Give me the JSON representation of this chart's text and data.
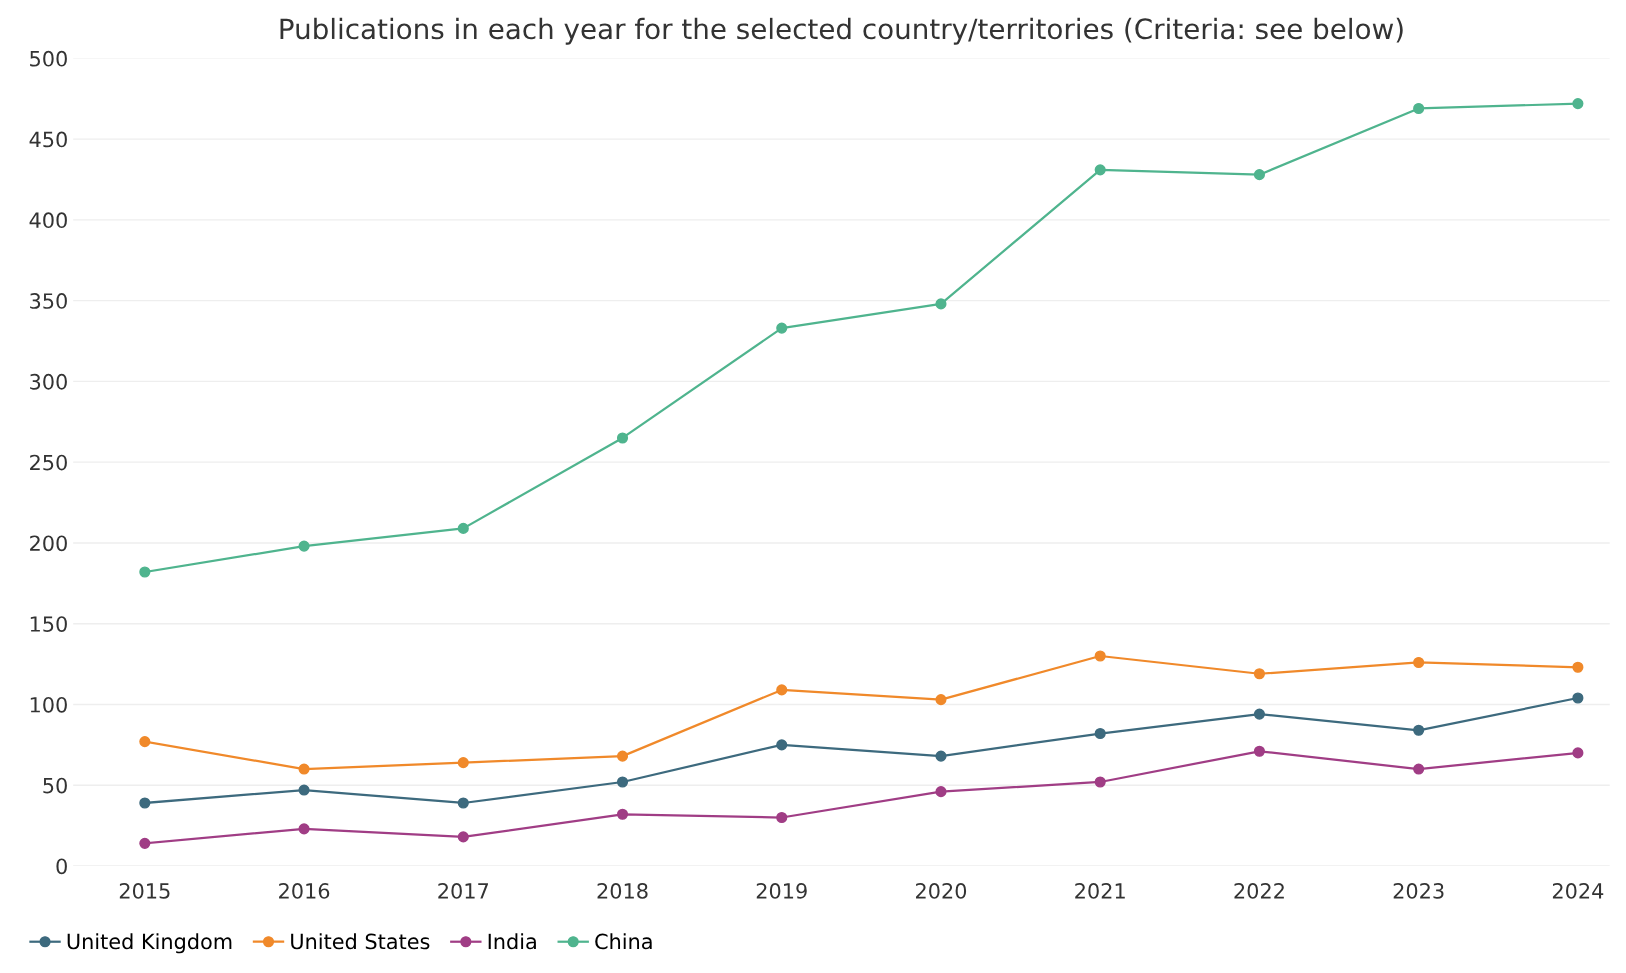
{
  "chart_data": {
    "type": "line",
    "title": "Publications in each year for the selected country/territories (Criteria: see below)",
    "categories": [
      "2015",
      "2016",
      "2017",
      "2018",
      "2019",
      "2020",
      "2021",
      "2022",
      "2023",
      "2024"
    ],
    "series": [
      {
        "name": "United Kingdom",
        "color": "#3d6a7e",
        "values": [
          39,
          47,
          39,
          52,
          75,
          68,
          82,
          94,
          84,
          104
        ]
      },
      {
        "name": "United States",
        "color": "#f0892a",
        "values": [
          77,
          60,
          64,
          68,
          109,
          103,
          130,
          119,
          126,
          123
        ]
      },
      {
        "name": "India",
        "color": "#a03d85",
        "values": [
          14,
          23,
          18,
          32,
          30,
          46,
          52,
          71,
          60,
          70
        ]
      },
      {
        "name": "China",
        "color": "#4fb48e",
        "values": [
          182,
          198,
          209,
          265,
          333,
          348,
          431,
          428,
          469,
          472
        ]
      }
    ],
    "ylim": [
      0,
      500
    ],
    "yticks": [
      0,
      50,
      100,
      150,
      200,
      250,
      300,
      350,
      400,
      450,
      500
    ],
    "grid": "y",
    "legend": "bottom left",
    "marker": "circle",
    "line_style": "solid"
  }
}
